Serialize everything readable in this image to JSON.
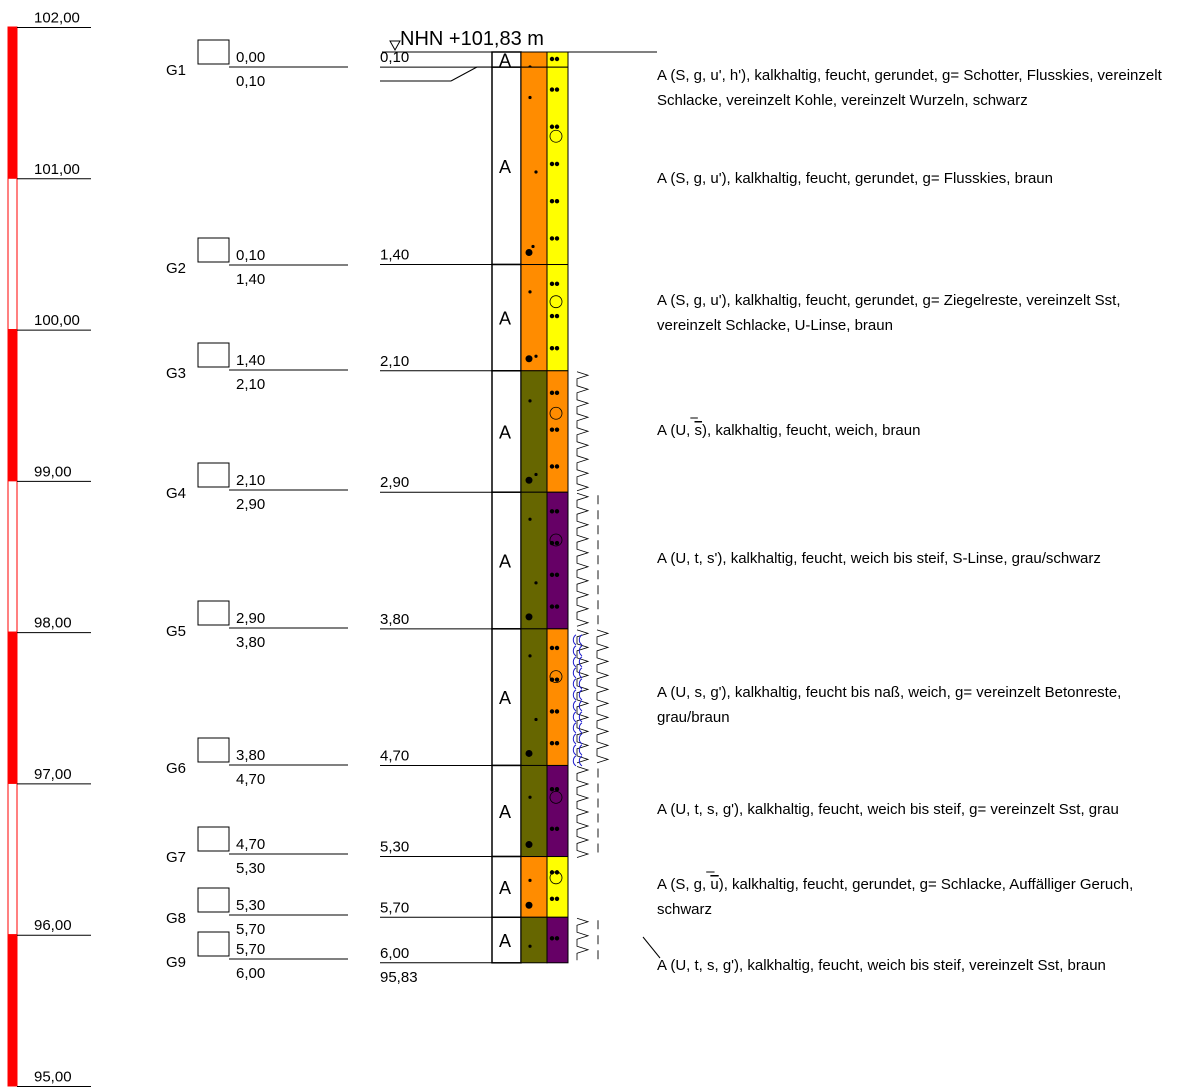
{
  "elevation_label": "NHN +101,83 m",
  "colors": {
    "scale_red": "#ff0000",
    "fill_orange": "#ff8c00",
    "fill_yellow": "#ffff00",
    "fill_olive": "#666600",
    "fill_purple": "#660066",
    "symbol_blue": "#1a1acc"
  },
  "scale": {
    "top": 102.0,
    "bottom": 95.0,
    "labels": [
      "102,00",
      "101,00",
      "100,00",
      "99,00",
      "98,00",
      "97,00",
      "96,00",
      "95,00"
    ]
  },
  "bottom_elevation": "95,83",
  "samples": [
    {
      "id": "G1",
      "from": "0,00",
      "to": "0,10"
    },
    {
      "id": "G2",
      "from": "0,10",
      "to": "1,40"
    },
    {
      "id": "G3",
      "from": "1,40",
      "to": "2,10"
    },
    {
      "id": "G4",
      "from": "2,10",
      "to": "2,90"
    },
    {
      "id": "G5",
      "from": "2,90",
      "to": "3,80"
    },
    {
      "id": "G6",
      "from": "3,80",
      "to": "4,70"
    },
    {
      "id": "G7",
      "from": "4,70",
      "to": "5,30"
    },
    {
      "id": "G8",
      "from": "5,30",
      "to": "5,70"
    },
    {
      "id": "G9",
      "from": "5,70",
      "to": "6,00"
    }
  ],
  "layers": [
    {
      "top": 0.0,
      "bottom": 0.1,
      "depth_label": "0,10",
      "code": "A",
      "left_fill": "orange",
      "right_fill": "yellow",
      "moisture": "none",
      "consistency": "none",
      "description": "A (S, g, u', h'), kalkhaltig, feucht, gerundet, g= Schotter, Flusskies, vereinzelt Schlacke, vereinzelt Kohle, vereinzelt Wurzeln, schwarz"
    },
    {
      "top": 0.1,
      "bottom": 1.4,
      "depth_label": "1,40",
      "code": "A",
      "left_fill": "orange",
      "right_fill": "yellow",
      "moisture": "none",
      "consistency": "none",
      "description": "A (S, g, u'), kalkhaltig, feucht, gerundet, g= Flusskies, braun"
    },
    {
      "top": 1.4,
      "bottom": 2.1,
      "depth_label": "2,10",
      "code": "A",
      "left_fill": "orange",
      "right_fill": "yellow",
      "moisture": "none",
      "consistency": "none",
      "description": "A (S, g, u'), kalkhaltig, feucht, gerundet, g= Ziegelreste, vereinzelt Sst, vereinzelt Schlacke, U-Linse, braun"
    },
    {
      "top": 2.1,
      "bottom": 2.9,
      "depth_label": "2,90",
      "code": "A",
      "left_fill": "olive",
      "right_fill": "orange",
      "moisture": "none",
      "consistency": "weich",
      "description_parts": [
        "A (U, ",
        "s",
        "), kalkhaltig, feucht, weich, braun"
      ]
    },
    {
      "top": 2.9,
      "bottom": 3.8,
      "depth_label": "3,80",
      "code": "A",
      "left_fill": "olive",
      "right_fill": "purple",
      "moisture": "none",
      "consistency": "weich-steif",
      "description": "A (U, t, s'), kalkhaltig, feucht, weich bis steif, S-Linse, grau/schwarz"
    },
    {
      "top": 3.8,
      "bottom": 4.7,
      "depth_label": "4,70",
      "code": "A",
      "left_fill": "olive",
      "right_fill": "orange",
      "moisture": "nass",
      "consistency": "weich",
      "description": "A (U, s, g'), kalkhaltig, feucht bis naß, weich, g= vereinzelt Betonreste, grau/braun"
    },
    {
      "top": 4.7,
      "bottom": 5.3,
      "depth_label": "5,30",
      "code": "A",
      "left_fill": "olive",
      "right_fill": "purple",
      "moisture": "none",
      "consistency": "weich-steif",
      "description": "A (U, t, s, g'), kalkhaltig, feucht, weich bis steif, g= vereinzelt Sst, grau"
    },
    {
      "top": 5.3,
      "bottom": 5.7,
      "depth_label": "5,70",
      "code": "A",
      "left_fill": "orange",
      "right_fill": "yellow",
      "moisture": "none",
      "consistency": "none",
      "description_parts": [
        "A (S, g, ",
        "u",
        "), kalkhaltig, feucht, gerundet, g= Schlacke, Auffälliger Geruch, schwarz"
      ]
    },
    {
      "top": 5.7,
      "bottom": 6.0,
      "depth_label": "6,00",
      "code": "A",
      "left_fill": "olive",
      "right_fill": "purple",
      "moisture": "none",
      "consistency": "weich-steif",
      "description": "A (U, t, s, g'), kalkhaltig, feucht, weich bis steif, vereinzelt Sst, braun"
    }
  ]
}
